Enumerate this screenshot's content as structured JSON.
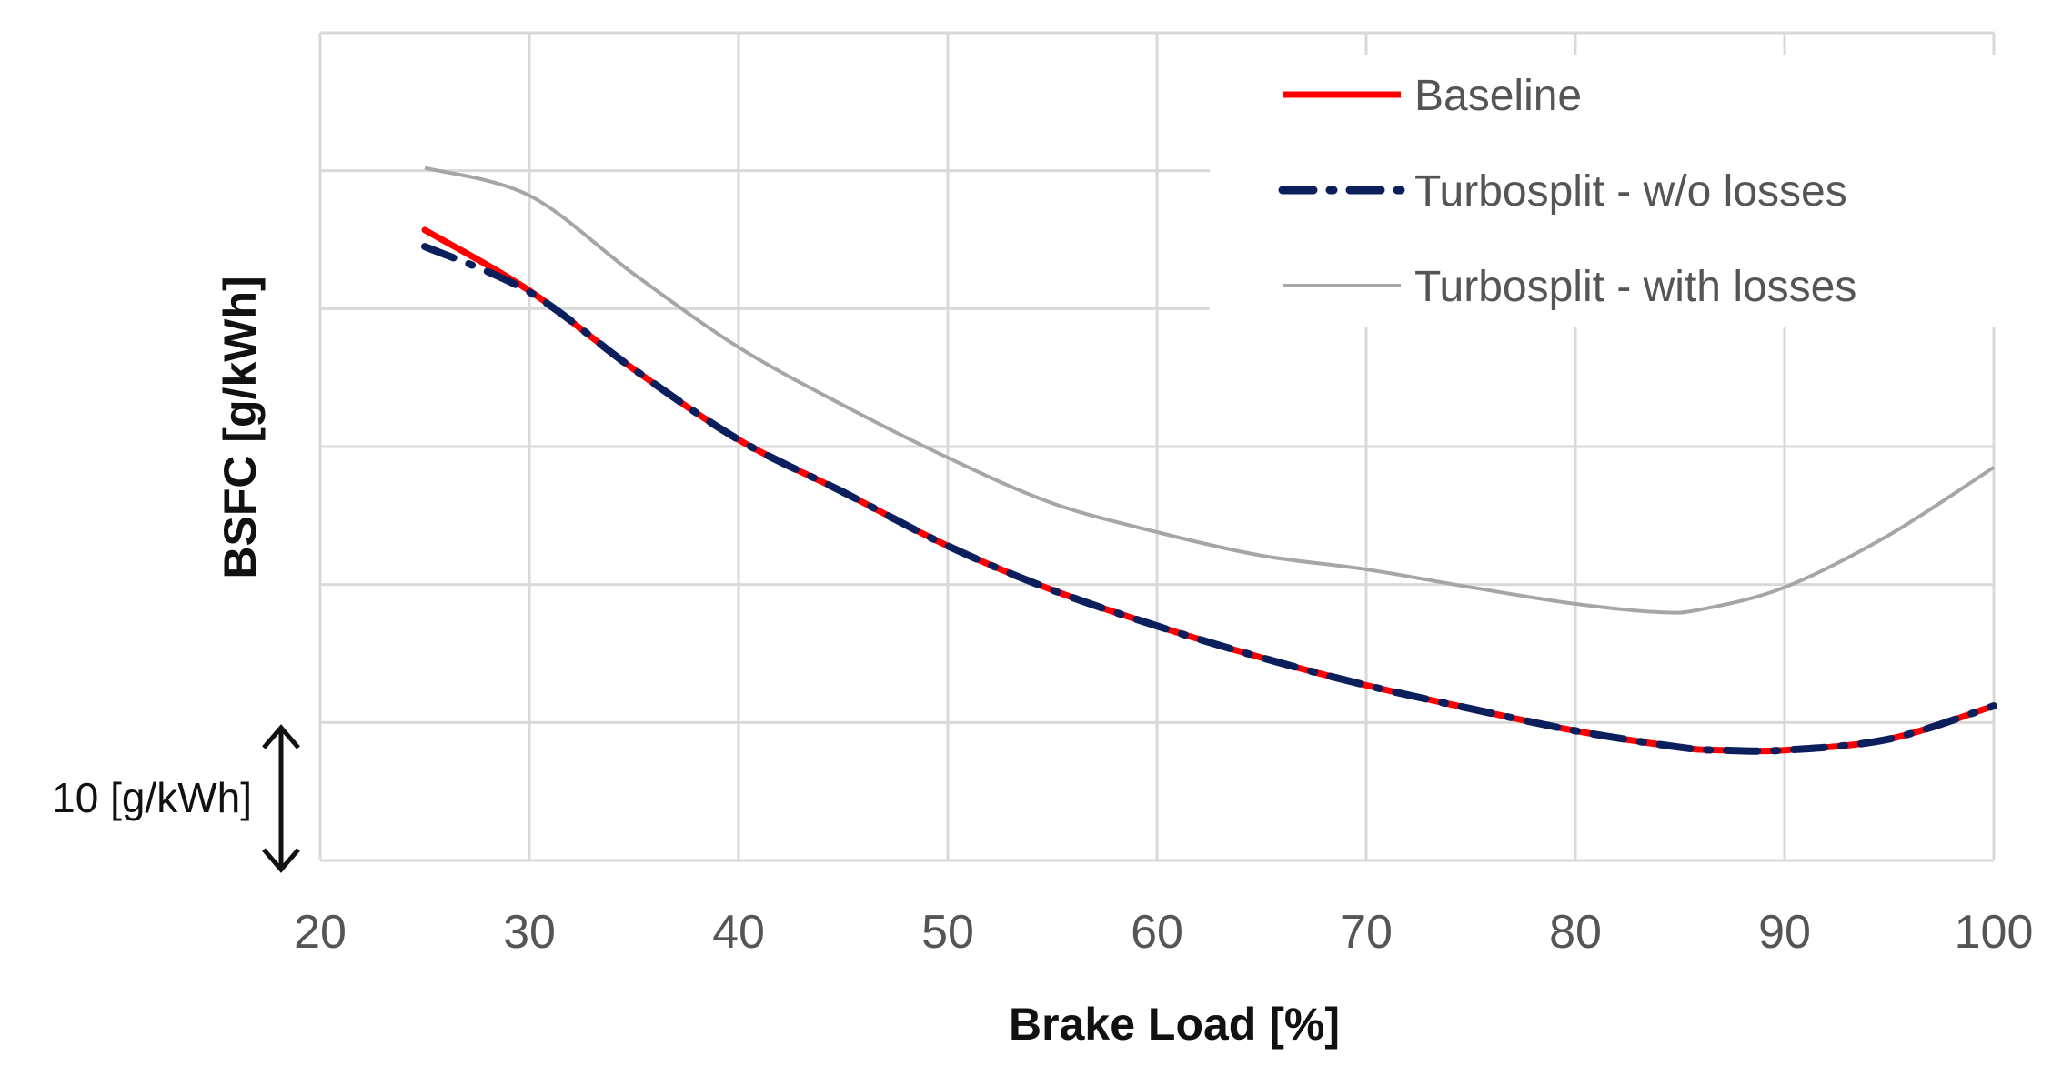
{
  "chart_data": {
    "type": "line",
    "xlabel": "Brake Load [%]",
    "ylabel": "BSFC [g/kWh]",
    "xlim": [
      20,
      100
    ],
    "ylim": [
      0,
      60
    ],
    "x_ticks": [
      "20",
      "30",
      "40",
      "50",
      "60",
      "70",
      "80",
      "90",
      "100"
    ],
    "y_tick_labels_shown": false,
    "grid": true,
    "legend_position": "top-right",
    "scale_bar": {
      "label": "10 [g/kWh]",
      "value": 10
    },
    "series": [
      {
        "name": "Baseline",
        "style": "solid",
        "color": "#ff0000",
        "x": [
          25,
          30,
          35,
          40,
          45,
          50,
          55,
          60,
          65,
          70,
          75,
          80,
          85,
          87,
          90,
          95,
          100
        ],
        "y": [
          45.7,
          41.3,
          35.6,
          30.5,
          26.7,
          22.8,
          19.6,
          17.0,
          14.7,
          12.7,
          11.0,
          9.4,
          8.2,
          8.0,
          8.0,
          8.8,
          11.2
        ]
      },
      {
        "name": "Turbosplit - w/o losses",
        "style": "dash-dot",
        "color": "#0a1f5c",
        "x": [
          25,
          30,
          35,
          40,
          45,
          50,
          55,
          60,
          65,
          70,
          75,
          80,
          85,
          87,
          90,
          95,
          100
        ],
        "y": [
          44.5,
          41.2,
          35.6,
          30.5,
          26.7,
          22.8,
          19.6,
          17.0,
          14.7,
          12.7,
          11.0,
          9.4,
          8.2,
          8.0,
          8.0,
          8.8,
          11.2
        ]
      },
      {
        "name": "Turbosplit - with losses",
        "style": "solid",
        "color": "#a6a6a6",
        "x": [
          25,
          30,
          35,
          40,
          45,
          50,
          55,
          60,
          65,
          70,
          75,
          80,
          84,
          86,
          90,
          95,
          100
        ],
        "y": [
          50.2,
          48.2,
          42.5,
          37.2,
          33.0,
          29.2,
          25.9,
          23.8,
          22.1,
          21.1,
          19.8,
          18.6,
          18.0,
          18.2,
          19.8,
          23.6,
          28.5
        ]
      }
    ]
  }
}
